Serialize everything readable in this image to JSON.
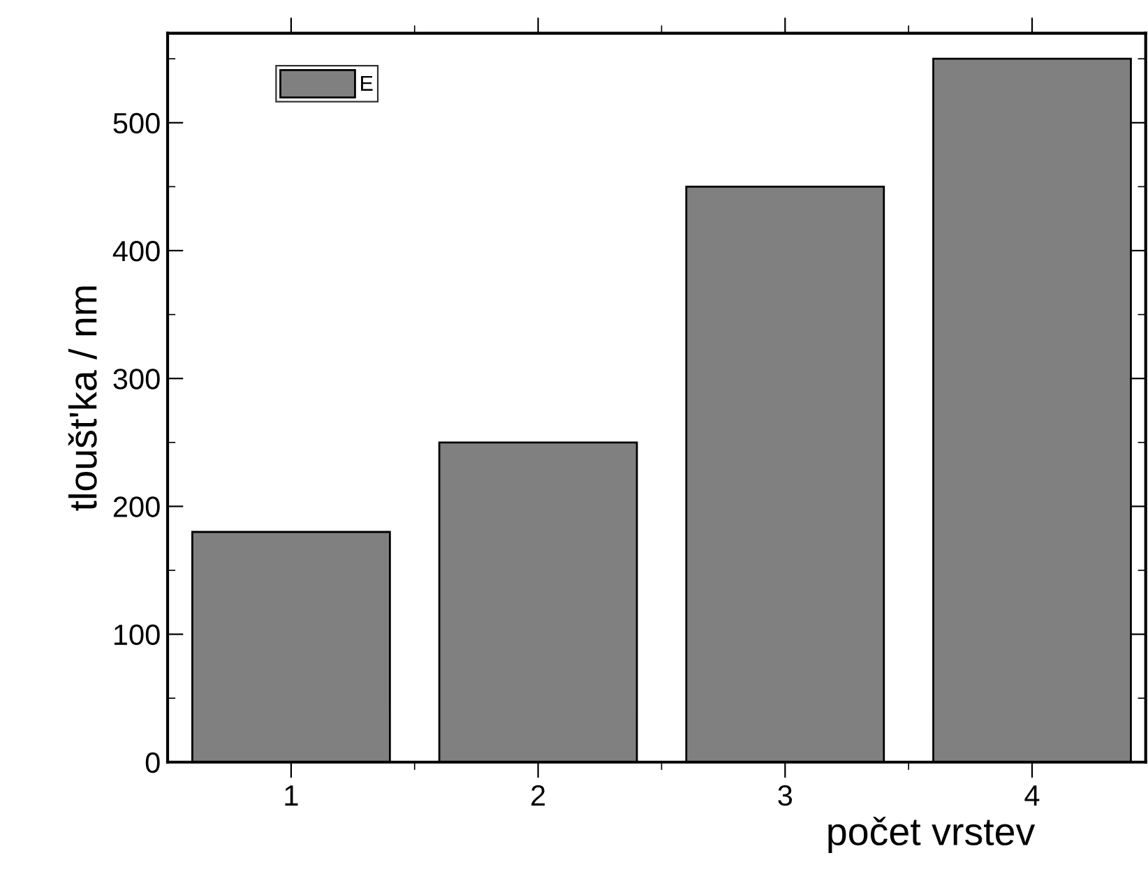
{
  "chart_data": {
    "type": "bar",
    "xlabel": "počet vrstev",
    "ylabel": "tloušt'ka / nm",
    "categories": [
      "1",
      "2",
      "3",
      "4"
    ],
    "series": [
      {
        "name": "E",
        "color": "#808080",
        "values": [
          180,
          250,
          450,
          550
        ]
      }
    ],
    "ylim": [
      0,
      570
    ],
    "yticks": [
      0,
      100,
      200,
      300,
      400,
      500
    ],
    "grid": false,
    "legend": "top left"
  }
}
